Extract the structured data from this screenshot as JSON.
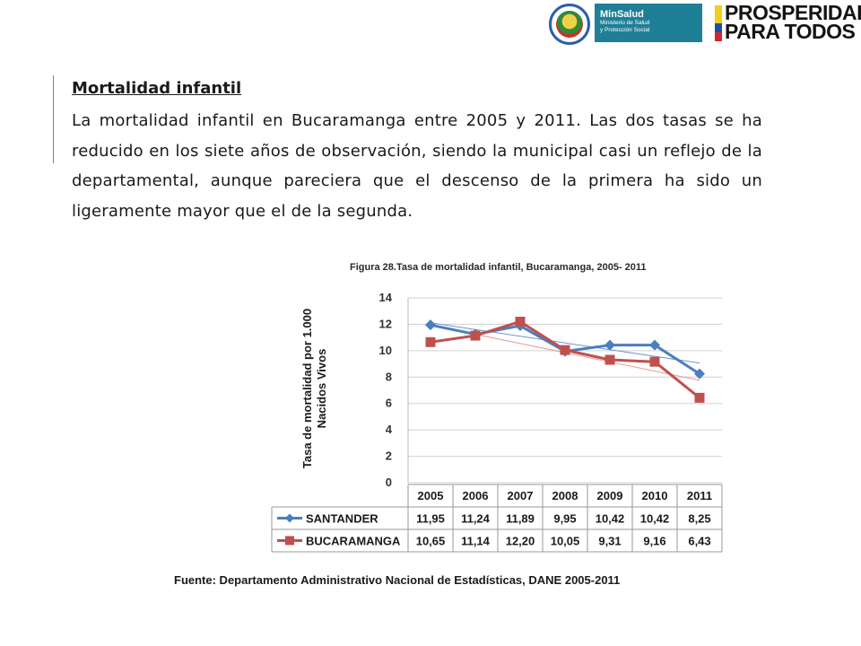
{
  "header": {
    "minsalud_name": "MinSalud",
    "minsalud_sub1": "Ministerio de Salud",
    "minsalud_sub2": "y Protección Social",
    "prosperidad_line1": "PROSPERIDAD",
    "prosperidad_line2": "PARA TODOS",
    "flag_colors": [
      "#f6cc1b",
      "#1e4fa0",
      "#d6252b"
    ]
  },
  "slide": {
    "title": "Mortalidad infantil",
    "body": "La mortalidad infantil en Bucaramanga entre 2005 y 2011. Las dos tasas se ha reducido en los siete años de observación, siendo la municipal casi un reflejo de la departamental, aunque pareciera que el descenso de la primera ha sido un ligeramente mayor que el de la segunda."
  },
  "chart_data": {
    "type": "line",
    "title": "Figura 28.Tasa de mortalidad infantil, Bucaramanga, 2005- 2011",
    "ylabel_line1": "Tasa de mortalidad por 1.000",
    "ylabel_line2": "Nacidos Vivos",
    "categories": [
      "2005",
      "2006",
      "2007",
      "2008",
      "2009",
      "2010",
      "2011"
    ],
    "ylim": [
      0,
      14
    ],
    "yticks": [
      0,
      2,
      4,
      6,
      8,
      10,
      12,
      14
    ],
    "grid": true,
    "legend_placement": "data-table",
    "trendlines": true,
    "series": [
      {
        "name": "SANTANDER",
        "values": [
          11.95,
          11.24,
          11.89,
          9.95,
          10.42,
          10.42,
          8.25
        ],
        "labels": [
          "11,95",
          "11,24",
          "11,89",
          "9,95",
          "10,42",
          "10,42",
          "8,25"
        ],
        "color": "#4a7ebf",
        "trend_color": "#6f95cf",
        "marker": "diamond"
      },
      {
        "name": "BUCARAMANGA",
        "values": [
          10.65,
          11.14,
          12.2,
          10.05,
          9.31,
          9.16,
          6.43
        ],
        "labels": [
          "10,65",
          "11,14",
          "12,20",
          "10,05",
          "9,31",
          "9,16",
          "6,43"
        ],
        "color": "#c0504d",
        "trend_color": "#e59a98",
        "marker": "square"
      }
    ],
    "source": "Fuente: Departamento Administrativo Nacional de Estadísticas, DANE 2005-2011"
  }
}
